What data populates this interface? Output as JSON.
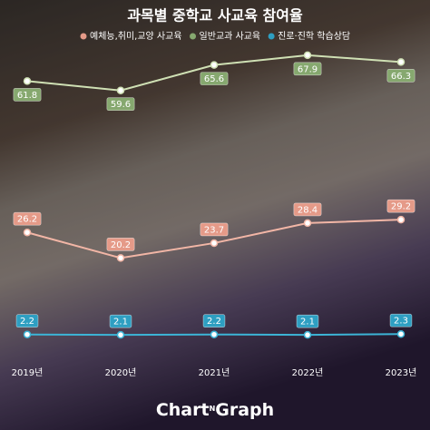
{
  "chart_data": {
    "type": "line",
    "title": "과목별 중학교 사교육 참여율",
    "categories": [
      "2019년",
      "2020년",
      "2021년",
      "2022년",
      "2023년"
    ],
    "series": [
      {
        "name": "예체능,취미,교양 사교육",
        "color": "#f2b6a6",
        "label_color": "#e59a88",
        "label_position": "above",
        "values": [
          26.2,
          20.2,
          23.7,
          28.4,
          29.2
        ]
      },
      {
        "name": "일반교과 사교육",
        "color": "#cfe0b4",
        "label_color": "#86a86f",
        "label_position": "below",
        "values": [
          61.8,
          59.6,
          65.6,
          67.9,
          66.3
        ]
      },
      {
        "name": "진로·진학 학습상담",
        "color": "#3cb4d6",
        "label_color": "#2e9fc2",
        "label_position": "above",
        "values": [
          2.2,
          2.1,
          2.2,
          2.1,
          2.3
        ]
      }
    ],
    "ylim": [
      0,
      70
    ]
  },
  "brand": {
    "left": "Chart",
    "middle": "N",
    "right": "Graph"
  }
}
